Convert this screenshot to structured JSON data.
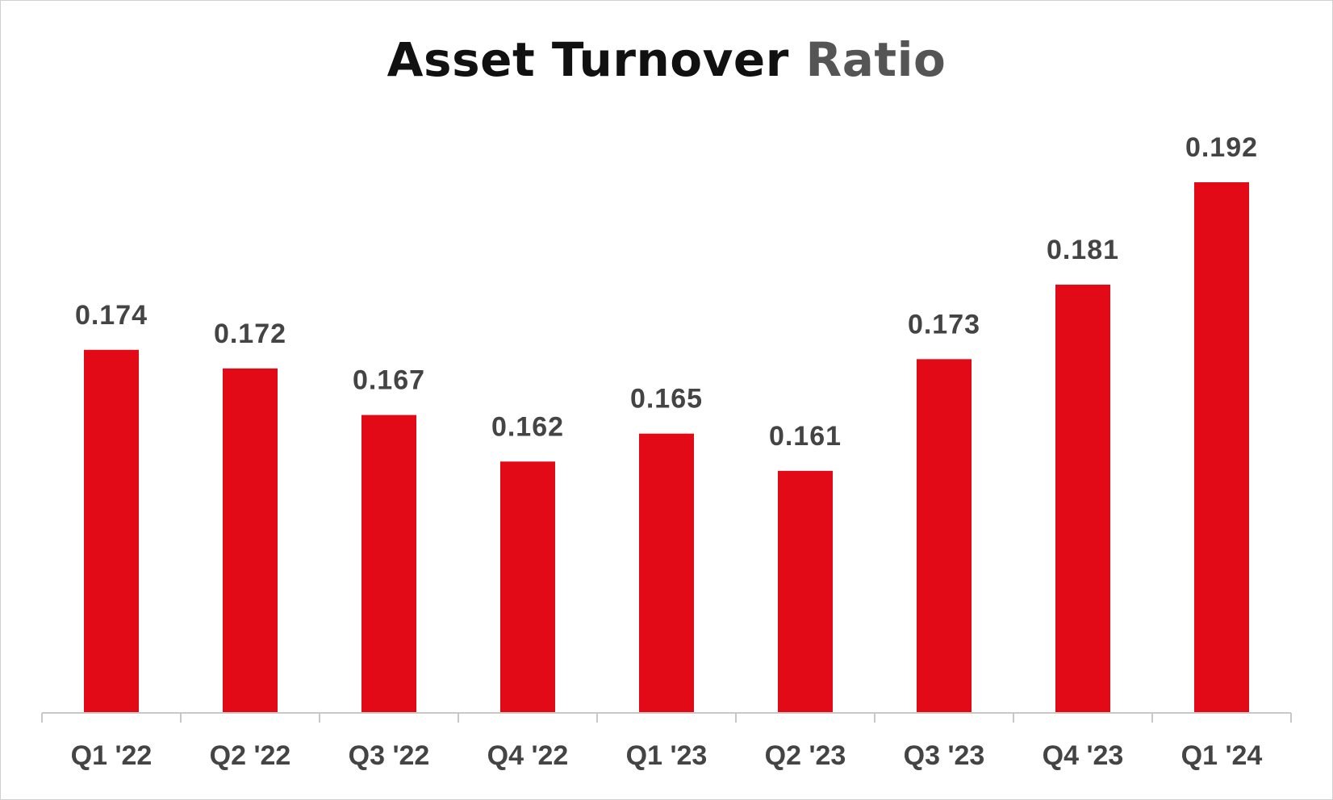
{
  "chart_data": {
    "type": "bar",
    "title_parts": [
      "Asset Turnover",
      "Ratio"
    ],
    "categories": [
      "Q1 '22",
      "Q2 '22",
      "Q3 '22",
      "Q4 '22",
      "Q1 '23",
      "Q2 '23",
      "Q3 '23",
      "Q4 '23",
      "Q1 '24"
    ],
    "values": [
      0.174,
      0.172,
      0.167,
      0.162,
      0.165,
      0.161,
      0.173,
      0.181,
      0.192
    ],
    "value_labels": [
      "0.174",
      "0.172",
      "0.167",
      "0.162",
      "0.165",
      "0.161",
      "0.173",
      "0.181",
      "0.192"
    ],
    "ylim": [
      0.135,
      0.192
    ],
    "grid": false,
    "legend": "none",
    "colors": {
      "bar": "#e30a18",
      "title_primary": "#111111",
      "title_secondary": "#555555",
      "labels": "#444444",
      "axis": "#c8c8c8"
    }
  }
}
